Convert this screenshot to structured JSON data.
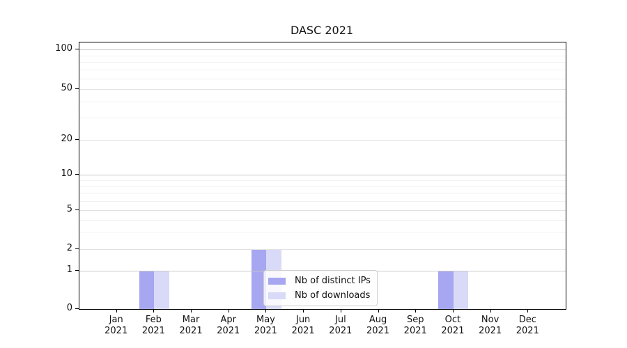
{
  "chart_data": {
    "type": "bar",
    "title": "DASC 2021",
    "xlabel": "",
    "ylabel": "",
    "grid": "horizontal",
    "categories": [
      {
        "month": "Jan",
        "year": "2021"
      },
      {
        "month": "Feb",
        "year": "2021"
      },
      {
        "month": "Mar",
        "year": "2021"
      },
      {
        "month": "Apr",
        "year": "2021"
      },
      {
        "month": "May",
        "year": "2021"
      },
      {
        "month": "Jun",
        "year": "2021"
      },
      {
        "month": "Jul",
        "year": "2021"
      },
      {
        "month": "Aug",
        "year": "2021"
      },
      {
        "month": "Sep",
        "year": "2021"
      },
      {
        "month": "Oct",
        "year": "2021"
      },
      {
        "month": "Nov",
        "year": "2021"
      },
      {
        "month": "Dec",
        "year": "2021"
      }
    ],
    "series": [
      {
        "name": "Nb of distinct IPs",
        "color": "#a6a6f1",
        "values": [
          0,
          1,
          0,
          0,
          2,
          0,
          0,
          0,
          0,
          1,
          0,
          0
        ]
      },
      {
        "name": "Nb of downloads",
        "color": "#d9d9f8",
        "values": [
          0,
          1,
          0,
          0,
          2,
          0,
          0,
          0,
          0,
          1,
          0,
          0
        ]
      }
    ],
    "y_axis": {
      "scale": "symlog-like",
      "ticks": [
        0,
        1,
        2,
        5,
        10,
        20,
        50,
        100
      ],
      "decade_ticks": [
        1,
        10,
        100
      ],
      "minor_ticks": [
        3,
        4,
        6,
        7,
        8,
        9,
        30,
        40,
        60,
        70,
        80,
        90
      ],
      "range_top_value": 120
    },
    "legend": {
      "position": "lower center-left",
      "entries": [
        "Nb of distinct IPs",
        "Nb of downloads"
      ]
    }
  }
}
